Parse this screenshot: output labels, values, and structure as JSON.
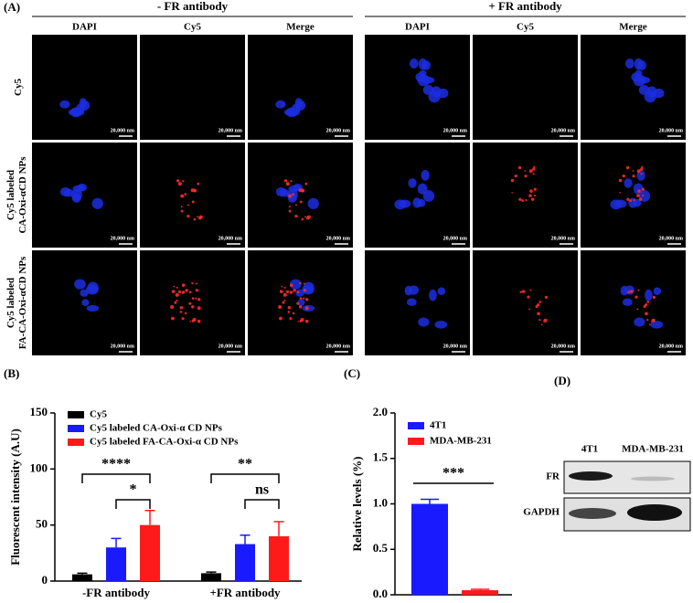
{
  "panel_a": {
    "label": "(A)",
    "groups": [
      {
        "title": "- FR antibody",
        "columns": [
          "DAPI",
          "Cy5",
          "Merge"
        ]
      },
      {
        "title": "+ FR antibody",
        "columns": [
          "DAPI",
          "Cy5",
          "Merge"
        ]
      }
    ],
    "rows": [
      [
        "Cy5"
      ],
      [
        "Cy5 labeled",
        "CA-Oxi-αCD NPs"
      ],
      [
        "Cy5 labeled",
        "FA-CA-Oxi-αCD NPs"
      ]
    ],
    "scale_bar": "20,000 nm"
  },
  "chart_data": [
    {
      "type": "bar",
      "panel": "(B)",
      "y_label": "Fluorescent intensity (A.U)",
      "categories": [
        "-FR antibody",
        "+FR antibody"
      ],
      "series": [
        {
          "name": "Cy5",
          "color": "#000000",
          "values": [
            6,
            7
          ],
          "errors": [
            1,
            1
          ]
        },
        {
          "name": "Cy5 labeled CA-Oxi-α CD NPs",
          "color": "#1a1aff",
          "values": [
            30,
            33
          ],
          "errors": [
            8,
            8
          ]
        },
        {
          "name": "Cy5 labeled FA-CA-Oxi-α CD NPs",
          "color": "#ff1a1a",
          "values": [
            50,
            40
          ],
          "errors": [
            13,
            13
          ]
        }
      ],
      "ylim": [
        0,
        150
      ],
      "yticks": [
        0,
        50,
        100,
        150
      ],
      "annotations": [
        "****",
        "*",
        "**",
        "ns"
      ]
    },
    {
      "type": "bar",
      "panel": "(C)",
      "y_label": "Relative levels (%)",
      "series": [
        {
          "name": "4T1",
          "color": "#1a1aff",
          "values": [
            1.0
          ],
          "errors": [
            0.05
          ]
        },
        {
          "name": "MDA-MB-231",
          "color": "#ff1a1a",
          "values": [
            0.05
          ],
          "errors": [
            0.01
          ]
        }
      ],
      "ylim": [
        0,
        2
      ],
      "yticks": [
        {
          "value": 0,
          "label": "0.0"
        },
        {
          "value": 0.5,
          "label": "0.5"
        },
        {
          "value": 1,
          "label": "1.0"
        },
        {
          "value": 1.5,
          "label": "1.5"
        },
        {
          "value": 2,
          "label": "2.0"
        }
      ],
      "annotations": [
        "***"
      ]
    }
  ],
  "panel_d": {
    "label": "(D)",
    "lanes": [
      "4T1",
      "MDA-MB-231"
    ],
    "proteins": [
      "FR",
      "GAPDH"
    ]
  }
}
